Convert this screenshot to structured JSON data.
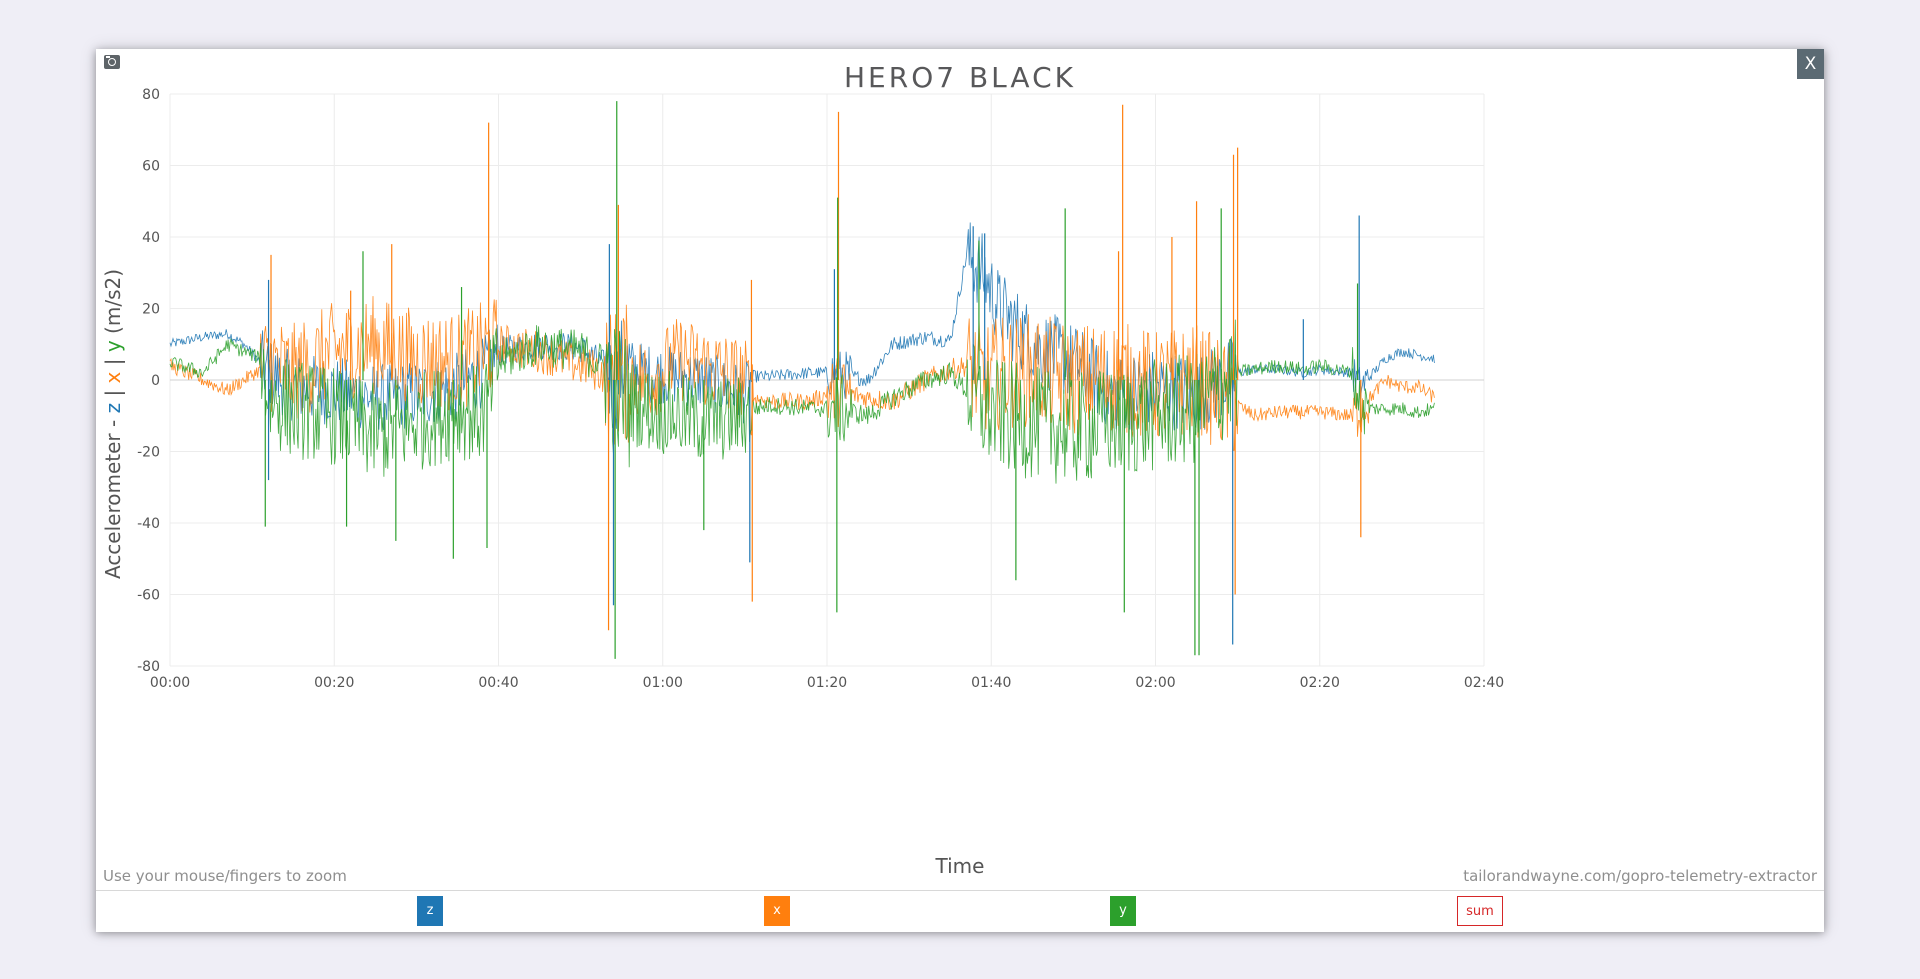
{
  "header": {
    "close_label": "X",
    "camera_icon": "camera-icon"
  },
  "footer": {
    "hint": "Use your mouse/fingers to zoom",
    "source": "tailorandwayne.com/gopro-telemetry-extractor"
  },
  "legend": {
    "z_label": "z",
    "x_label": "x",
    "y_label": "y",
    "sum_label": "sum"
  },
  "colors": {
    "z": "#1f77b4",
    "x": "#ff7f0e",
    "y": "#2ca02c",
    "sum": "#d62728",
    "ylabel_base": "#555555"
  },
  "chart_data": {
    "type": "line",
    "title": "HERO7 BLACK",
    "xlabel": "Time",
    "ylabel_parts": [
      {
        "text": "Accelerometer - ",
        "series": null
      },
      {
        "text": "z",
        "series": "z"
      },
      {
        "text": " | ",
        "series": null
      },
      {
        "text": "x",
        "series": "x"
      },
      {
        "text": " | ",
        "series": null
      },
      {
        "text": "y",
        "series": "y"
      },
      {
        "text": " (m/s2)",
        "series": null
      }
    ],
    "xlim": [
      0,
      160
    ],
    "ylim": [
      -80,
      80
    ],
    "x_ticks": [
      0,
      20,
      40,
      60,
      80,
      100,
      120,
      140,
      160
    ],
    "x_tick_labels": [
      "00:00",
      "00:20",
      "00:40",
      "01:00",
      "01:20",
      "01:40",
      "02:00",
      "02:20",
      "02:40"
    ],
    "y_ticks": [
      80,
      60,
      40,
      20,
      0,
      -20,
      -40,
      -60,
      -80
    ],
    "y_tick_labels": [
      "80",
      "60",
      "40",
      "20",
      "0",
      "-20",
      "-40",
      "-60",
      "-80"
    ],
    "grid": true,
    "x_units": "seconds",
    "series": [
      {
        "key": "z",
        "name": "z",
        "x": [
          0,
          4,
          7,
          9,
          11,
          12,
          15,
          20,
          25,
          30,
          35,
          38,
          40,
          45,
          50,
          53,
          54,
          55,
          58,
          62,
          65,
          70,
          71,
          73,
          78,
          81,
          85,
          88,
          92,
          95,
          97,
          99,
          101,
          105,
          110,
          115,
          120,
          125,
          130,
          132,
          135,
          138,
          140,
          144,
          145,
          148,
          150,
          152,
          154
        ],
        "y": [
          10,
          12,
          13,
          10,
          5,
          2,
          -2,
          -3,
          -5,
          -4,
          -2,
          2,
          8,
          10,
          9,
          4,
          -2,
          4,
          2,
          1,
          0,
          -4,
          1,
          1,
          2,
          2,
          0,
          10,
          12,
          11,
          35,
          30,
          20,
          10,
          5,
          -4,
          -2,
          -4,
          2,
          3,
          3,
          2,
          3,
          2,
          -2,
          6,
          8,
          7,
          6
        ]
      },
      {
        "key": "x",
        "name": "x",
        "x": [
          0,
          4,
          7,
          9,
          11,
          12,
          15,
          20,
          25,
          30,
          35,
          38,
          40,
          45,
          50,
          53,
          54,
          55,
          58,
          62,
          65,
          70,
          71,
          73,
          78,
          81,
          85,
          88,
          92,
          95,
          97,
          99,
          101,
          105,
          110,
          115,
          120,
          125,
          130,
          132,
          135,
          138,
          140,
          144,
          145,
          148,
          150,
          152,
          154
        ],
        "y": [
          4,
          0,
          -3,
          0,
          3,
          5,
          2,
          8,
          10,
          6,
          5,
          8,
          10,
          8,
          4,
          2,
          0,
          2,
          0,
          6,
          4,
          0,
          -5,
          -6,
          -6,
          -3,
          -5,
          -6,
          0,
          3,
          4,
          0,
          2,
          3,
          0,
          1,
          -2,
          0,
          -7,
          -10,
          -9,
          -9,
          -9,
          -10,
          -8,
          0,
          -2,
          -2,
          -5
        ]
      },
      {
        "key": "y",
        "name": "y",
        "x": [
          0,
          4,
          7,
          9,
          11,
          12,
          15,
          20,
          25,
          30,
          35,
          38,
          40,
          45,
          50,
          53,
          54,
          55,
          58,
          62,
          65,
          70,
          71,
          73,
          78,
          81,
          85,
          88,
          92,
          95,
          97,
          99,
          101,
          105,
          110,
          115,
          120,
          125,
          130,
          132,
          135,
          138,
          140,
          144,
          145,
          148,
          150,
          152,
          154
        ],
        "y": [
          5,
          2,
          10,
          8,
          6,
          -5,
          -8,
          -10,
          -15,
          -12,
          -8,
          -10,
          5,
          10,
          8,
          4,
          -2,
          -5,
          -8,
          -10,
          -12,
          -10,
          -8,
          -7,
          -8,
          -8,
          -10,
          -5,
          0,
          2,
          -3,
          -8,
          -10,
          -12,
          -14,
          -12,
          -10,
          -8,
          2,
          3,
          4,
          3,
          4,
          2,
          -8,
          -8,
          -8,
          -9,
          -8
        ]
      }
    ],
    "spikes": [
      {
        "series": "z",
        "x": 12,
        "y": 28
      },
      {
        "series": "z",
        "x": 12,
        "y": -28
      },
      {
        "series": "x",
        "x": 12.3,
        "y": 35
      },
      {
        "series": "y",
        "x": 11.6,
        "y": -41
      },
      {
        "series": "y",
        "x": 23.5,
        "y": 36
      },
      {
        "series": "x",
        "x": 27,
        "y": 38
      },
      {
        "series": "x",
        "x": 22,
        "y": 25
      },
      {
        "series": "y",
        "x": 21.5,
        "y": -41
      },
      {
        "series": "y",
        "x": 27.5,
        "y": -45
      },
      {
        "series": "y",
        "x": 34.5,
        "y": -50
      },
      {
        "series": "y",
        "x": 35.5,
        "y": 26
      },
      {
        "series": "x",
        "x": 38.8,
        "y": 72
      },
      {
        "series": "y",
        "x": 38.6,
        "y": -47
      },
      {
        "series": "z",
        "x": 53.5,
        "y": 38
      },
      {
        "series": "y",
        "x": 54.4,
        "y": 78
      },
      {
        "series": "y",
        "x": 54.2,
        "y": -78
      },
      {
        "series": "x",
        "x": 54.6,
        "y": 49
      },
      {
        "series": "x",
        "x": 53.4,
        "y": -70
      },
      {
        "series": "z",
        "x": 54.0,
        "y": -63
      },
      {
        "series": "x",
        "x": 70.8,
        "y": 28
      },
      {
        "series": "x",
        "x": 70.9,
        "y": -62
      },
      {
        "series": "z",
        "x": 70.6,
        "y": -51
      },
      {
        "series": "y",
        "x": 65,
        "y": -42
      },
      {
        "series": "x",
        "x": 81.4,
        "y": 75
      },
      {
        "series": "y",
        "x": 81.3,
        "y": 51
      },
      {
        "series": "y",
        "x": 81.2,
        "y": -65
      },
      {
        "series": "z",
        "x": 80.9,
        "y": 31
      },
      {
        "series": "z",
        "x": 97.8,
        "y": 43
      },
      {
        "series": "z",
        "x": 99.2,
        "y": 41
      },
      {
        "series": "y",
        "x": 98.5,
        "y": 39
      },
      {
        "series": "y",
        "x": 109,
        "y": 48
      },
      {
        "series": "y",
        "x": 103,
        "y": -56
      },
      {
        "series": "x",
        "x": 116,
        "y": 77
      },
      {
        "series": "x",
        "x": 115.5,
        "y": 36
      },
      {
        "series": "y",
        "x": 116.2,
        "y": -65
      },
      {
        "series": "x",
        "x": 122,
        "y": 40
      },
      {
        "series": "x",
        "x": 125,
        "y": 50
      },
      {
        "series": "y",
        "x": 124.8,
        "y": -77
      },
      {
        "series": "y",
        "x": 125.3,
        "y": -77
      },
      {
        "series": "x",
        "x": 129.5,
        "y": 63
      },
      {
        "series": "x",
        "x": 130,
        "y": 65
      },
      {
        "series": "z",
        "x": 129.4,
        "y": -74
      },
      {
        "series": "x",
        "x": 129.7,
        "y": -60
      },
      {
        "series": "y",
        "x": 128,
        "y": 48
      },
      {
        "series": "z",
        "x": 138,
        "y": 17
      },
      {
        "series": "z",
        "x": 144.8,
        "y": 46
      },
      {
        "series": "x",
        "x": 145,
        "y": -44
      },
      {
        "series": "y",
        "x": 144.6,
        "y": 27
      }
    ]
  }
}
